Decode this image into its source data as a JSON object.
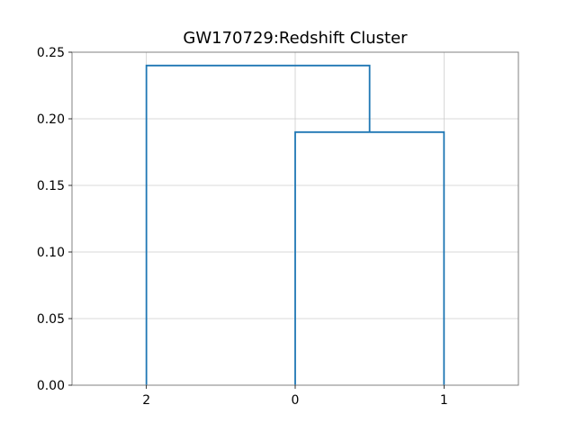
{
  "chart_data": {
    "type": "dendrogram",
    "title": "GW170729:Redshift Cluster",
    "xlabel": "",
    "ylabel": "",
    "leaf_order": [
      "2",
      "0",
      "1"
    ],
    "ylim": [
      0.0,
      0.25
    ],
    "yticks": [
      "0.00",
      "0.05",
      "0.10",
      "0.15",
      "0.20",
      "0.25"
    ],
    "grid": true,
    "link_color": "#1f77b4",
    "merges": [
      {
        "left": "0",
        "right": "1",
        "height": 0.19
      },
      {
        "left": "2",
        "right": "(0,1)",
        "height": 0.24
      }
    ]
  }
}
